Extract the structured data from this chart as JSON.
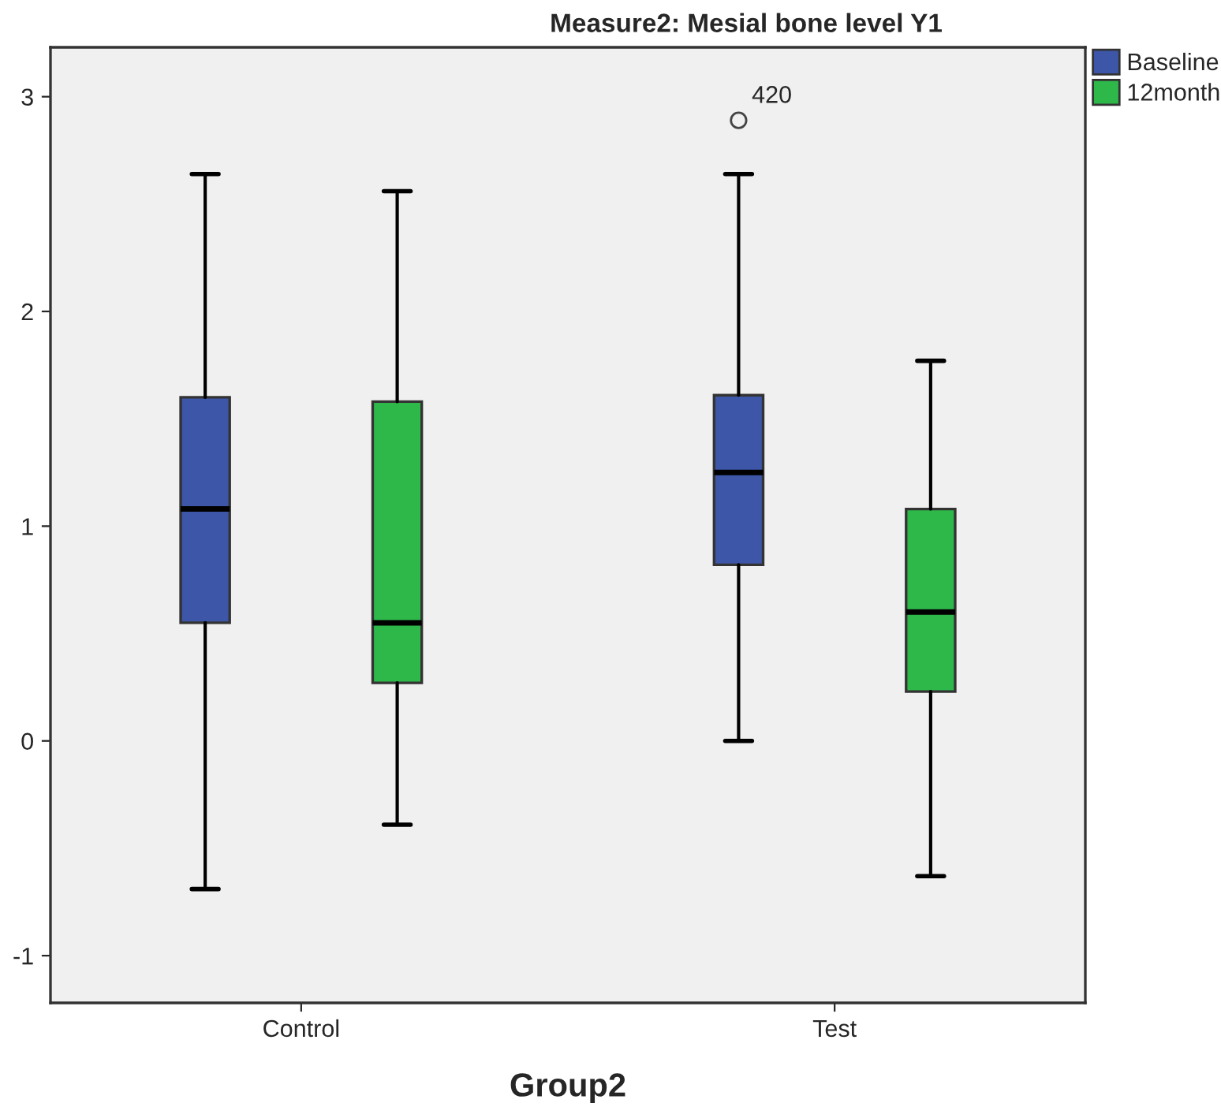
{
  "chart_data": {
    "type": "box",
    "title": "Measure2: Mesial bone level Y1",
    "xlabel": "Group2",
    "categories": [
      "Control",
      "Test"
    ],
    "series": [
      {
        "name": "Baseline",
        "color": "#3d56a8",
        "boxes": [
          {
            "low": -0.69,
            "q1": 0.55,
            "median": 1.08,
            "q3": 1.6,
            "high": 2.64
          },
          {
            "low": 0.0,
            "q1": 0.82,
            "median": 1.25,
            "q3": 1.61,
            "high": 2.64,
            "outliers": [
              2.89
            ]
          }
        ]
      },
      {
        "name": "12month",
        "color": "#2eb84a",
        "boxes": [
          {
            "low": -0.39,
            "q1": 0.27,
            "median": 0.55,
            "q3": 1.58,
            "high": 2.56
          },
          {
            "low": -0.63,
            "q1": 0.23,
            "median": 0.6,
            "q3": 1.08,
            "high": 1.77
          }
        ]
      }
    ],
    "annotations": [
      "420"
    ],
    "ylim": [
      -1.22,
      3.23
    ],
    "yticks": [
      -1,
      0,
      1,
      2,
      3
    ],
    "grid": false,
    "legend": "top right"
  }
}
